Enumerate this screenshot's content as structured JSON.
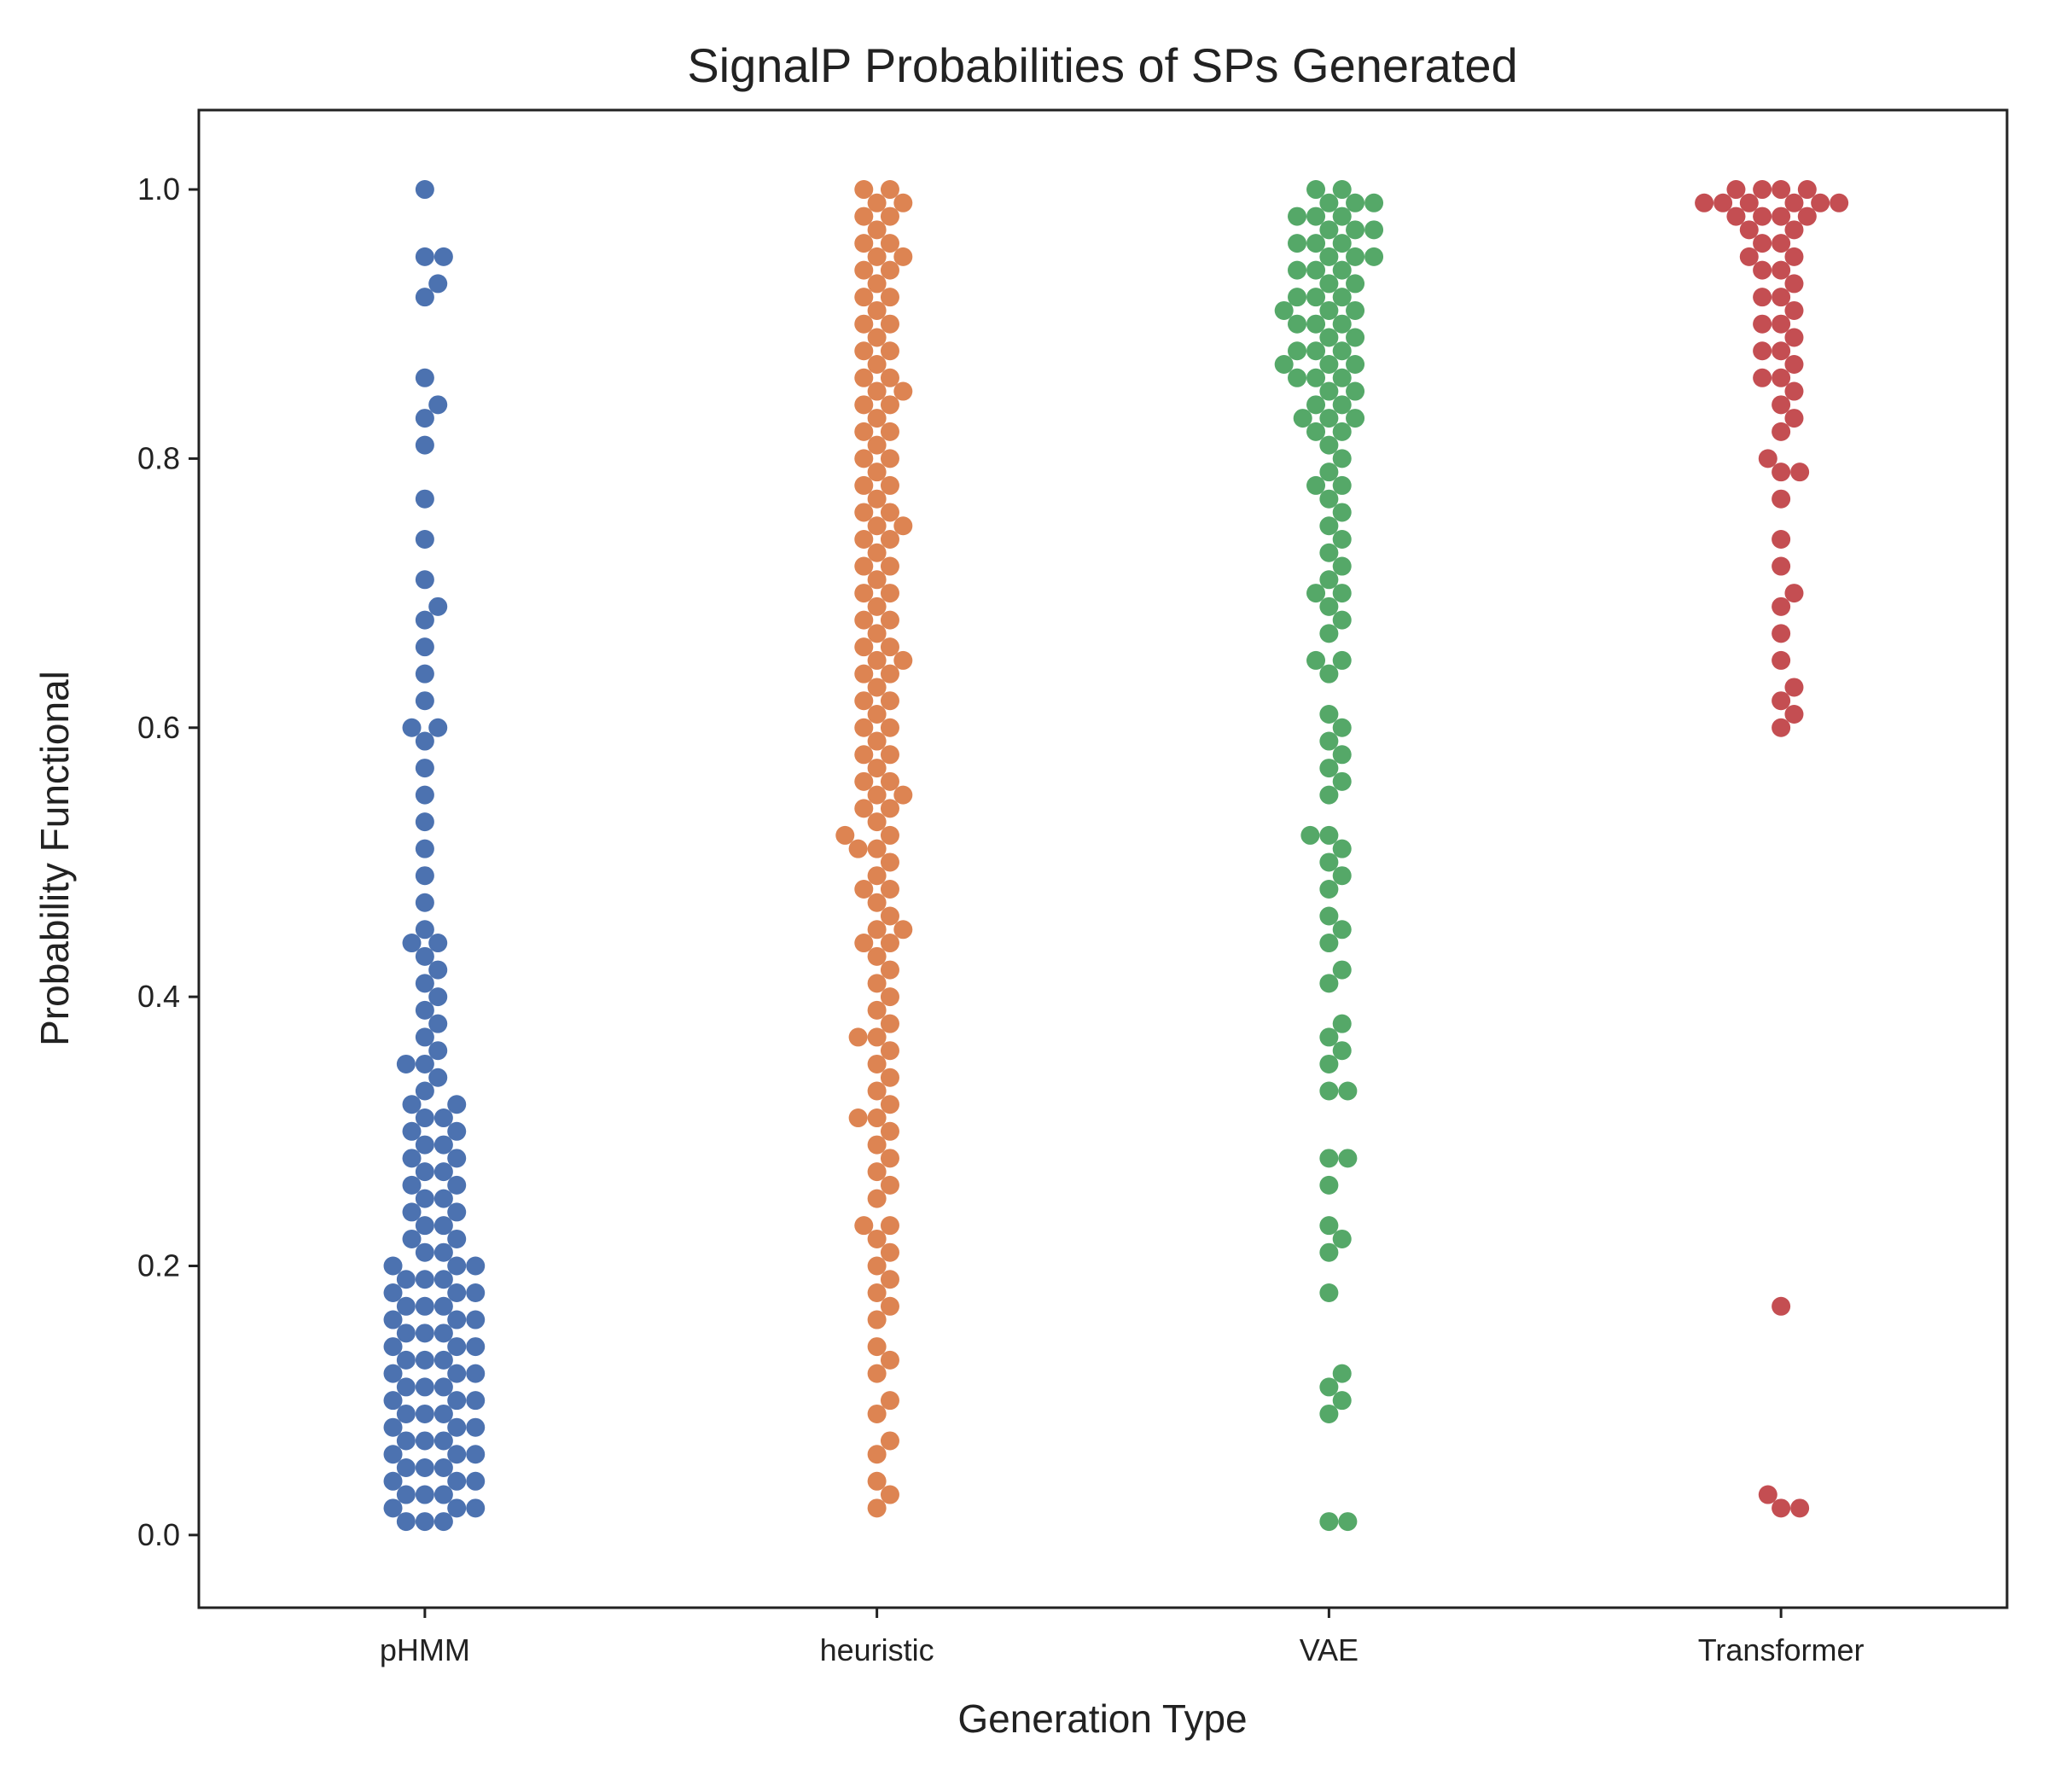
{
  "chart_data": {
    "type": "swarm",
    "title": "SignalP Probabilities of SPs Generated",
    "xlabel": "Generation Type",
    "ylabel": "Probability Functional",
    "categories": [
      "pHMM",
      "heuristic",
      "VAE",
      "Transformer"
    ],
    "colors": [
      "#4c72b0",
      "#dd8452",
      "#55a868",
      "#c44e52"
    ],
    "ylim": [
      -0.054,
      1.059
    ],
    "yticks": [
      {
        "value": 0,
        "label": "0.0"
      },
      0.2,
      0.4,
      0.6,
      0.8,
      {
        "value": 1,
        "label": "1.0"
      }
    ],
    "values": [
      [
        0.01,
        0.01,
        0.01,
        0.02,
        0.02,
        0.02,
        0.03,
        0.03,
        0.03,
        0.04,
        0.04,
        0.04,
        0.05,
        0.05,
        0.05,
        0.06,
        0.06,
        0.06,
        0.07,
        0.07,
        0.07,
        0.08,
        0.08,
        0.08,
        0.09,
        0.09,
        0.09,
        0.1,
        0.1,
        0.1,
        0.11,
        0.11,
        0.11,
        0.12,
        0.12,
        0.12,
        0.13,
        0.13,
        0.13,
        0.14,
        0.14,
        0.14,
        0.15,
        0.15,
        0.15,
        0.16,
        0.16,
        0.16,
        0.17,
        0.17,
        0.17,
        0.18,
        0.18,
        0.18,
        0.19,
        0.19,
        0.19,
        0.2,
        0.2,
        0.2,
        0.21,
        0.21,
        0.22,
        0.22,
        0.23,
        0.23,
        0.24,
        0.24,
        0.25,
        0.25,
        0.26,
        0.26,
        0.27,
        0.27,
        0.28,
        0.28,
        0.29,
        0.29,
        0.3,
        0.3,
        0.31,
        0.31,
        0.32,
        0.32,
        0.33,
        0.34,
        0.35,
        0.35,
        0.36,
        0.37,
        0.38,
        0.39,
        0.4,
        0.41,
        0.42,
        0.43,
        0.44,
        0.44,
        0.45,
        0.47,
        0.49,
        0.51,
        0.53,
        0.55,
        0.57,
        0.59,
        0.6,
        0.6,
        0.62,
        0.64,
        0.66,
        0.68,
        0.69,
        0.71,
        0.74,
        0.77,
        0.81,
        0.83,
        0.84,
        0.86,
        0.92,
        0.93,
        0.95,
        0.95,
        1.0
      ],
      [
        0.02,
        0.03,
        0.04,
        0.06,
        0.07,
        0.09,
        0.1,
        0.12,
        0.13,
        0.14,
        0.16,
        0.17,
        0.18,
        0.19,
        0.2,
        0.21,
        0.22,
        0.23,
        0.23,
        0.25,
        0.26,
        0.27,
        0.28,
        0.29,
        0.3,
        0.31,
        0.31,
        0.32,
        0.33,
        0.34,
        0.35,
        0.36,
        0.37,
        0.37,
        0.38,
        0.39,
        0.4,
        0.41,
        0.42,
        0.43,
        0.44,
        0.44,
        0.45,
        0.46,
        0.47,
        0.48,
        0.49,
        0.5,
        0.51,
        0.52,
        0.52,
        0.53,
        0.54,
        0.55,
        0.56,
        0.57,
        0.58,
        0.59,
        0.6,
        0.61,
        0.62,
        0.63,
        0.64,
        0.65,
        0.66,
        0.67,
        0.68,
        0.69,
        0.7,
        0.71,
        0.72,
        0.73,
        0.74,
        0.75,
        0.76,
        0.77,
        0.78,
        0.79,
        0.8,
        0.81,
        0.82,
        0.83,
        0.84,
        0.85,
        0.86,
        0.87,
        0.88,
        0.89,
        0.9,
        0.91,
        0.92,
        0.93,
        0.94,
        0.95,
        0.96,
        0.97,
        0.98,
        0.99,
        1.0,
        0.45,
        0.48,
        0.51,
        0.54,
        0.56,
        0.58,
        0.6,
        0.62,
        0.64,
        0.66,
        0.68,
        0.7,
        0.72,
        0.74,
        0.76,
        0.78,
        0.8,
        0.82,
        0.84,
        0.86,
        0.88,
        0.9,
        0.92,
        0.94,
        0.96,
        0.98,
        1.0,
        0.55,
        0.65,
        0.75,
        0.85,
        0.95,
        0.99
      ],
      [
        0.01,
        0.01,
        0.09,
        0.1,
        0.11,
        0.12,
        0.18,
        0.21,
        0.22,
        0.23,
        0.26,
        0.28,
        0.28,
        0.33,
        0.33,
        0.35,
        0.36,
        0.37,
        0.38,
        0.41,
        0.42,
        0.44,
        0.45,
        0.46,
        0.48,
        0.49,
        0.5,
        0.51,
        0.52,
        0.52,
        0.55,
        0.56,
        0.57,
        0.58,
        0.59,
        0.6,
        0.61,
        0.64,
        0.65,
        0.65,
        0.67,
        0.68,
        0.69,
        0.7,
        0.7,
        0.71,
        0.72,
        0.73,
        0.74,
        0.75,
        0.76,
        0.77,
        0.78,
        0.78,
        0.79,
        0.8,
        0.81,
        0.82,
        0.82,
        0.83,
        0.83,
        0.84,
        0.85,
        0.85,
        0.86,
        0.86,
        0.87,
        0.87,
        0.88,
        0.88,
        0.89,
        0.89,
        0.9,
        0.9,
        0.91,
        0.91,
        0.92,
        0.92,
        0.93,
        0.93,
        0.94,
        0.94,
        0.95,
        0.95,
        0.96,
        0.96,
        0.97,
        0.97,
        0.98,
        0.98,
        0.99,
        0.99,
        1.0,
        1.0,
        0.84,
        0.86,
        0.88,
        0.9,
        0.92,
        0.94,
        0.96,
        0.98,
        0.99,
        0.83,
        0.87,
        0.91,
        0.95,
        0.97
      ],
      [
        0.02,
        0.02,
        0.03,
        0.17,
        0.6,
        0.61,
        0.62,
        0.63,
        0.65,
        0.67,
        0.69,
        0.7,
        0.72,
        0.74,
        0.77,
        0.79,
        0.79,
        0.8,
        0.82,
        0.83,
        0.84,
        0.85,
        0.86,
        0.87,
        0.88,
        0.89,
        0.9,
        0.91,
        0.92,
        0.93,
        0.94,
        0.95,
        0.95,
        0.96,
        0.97,
        0.97,
        0.98,
        0.98,
        0.98,
        0.99,
        0.99,
        0.99,
        0.99,
        1.0,
        1.0,
        1.0,
        0.99,
        0.98,
        0.96,
        0.94,
        0.92,
        0.9,
        0.88,
        0.86,
        0.99,
        1.0
      ]
    ]
  }
}
